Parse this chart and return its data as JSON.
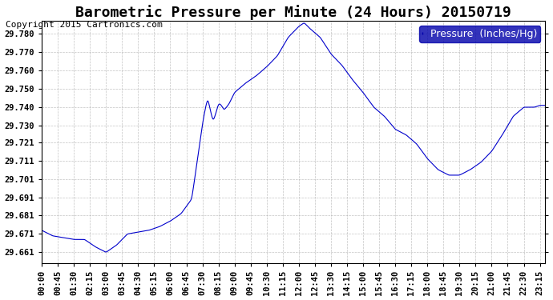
{
  "title": "Barometric Pressure per Minute (24 Hours) 20150719",
  "copyright": "Copyright 2015 Cartronics.com",
  "legend_label": "Pressure  (Inches/Hg)",
  "line_color": "#0000cc",
  "background_color": "#ffffff",
  "plot_bg_color": "#ffffff",
  "grid_color": "#aaaaaa",
  "legend_bg": "#0000aa",
  "legend_fg": "#ffffff",
  "yticks": [
    29.661,
    29.671,
    29.681,
    29.691,
    29.701,
    29.711,
    29.721,
    29.73,
    29.74,
    29.75,
    29.76,
    29.77,
    29.78
  ],
  "ylim": [
    29.655,
    29.787
  ],
  "xtick_labels": [
    "00:00",
    "00:45",
    "01:30",
    "02:15",
    "03:00",
    "03:45",
    "04:30",
    "05:15",
    "06:00",
    "06:45",
    "07:30",
    "08:15",
    "09:00",
    "09:45",
    "10:30",
    "11:15",
    "12:00",
    "12:45",
    "13:30",
    "14:15",
    "15:00",
    "15:45",
    "16:30",
    "17:15",
    "18:00",
    "18:45",
    "19:30",
    "20:15",
    "21:00",
    "21:45",
    "22:30",
    "23:15"
  ],
  "title_fontsize": 13,
  "copyright_fontsize": 8,
  "tick_fontsize": 7.5,
  "legend_fontsize": 9
}
